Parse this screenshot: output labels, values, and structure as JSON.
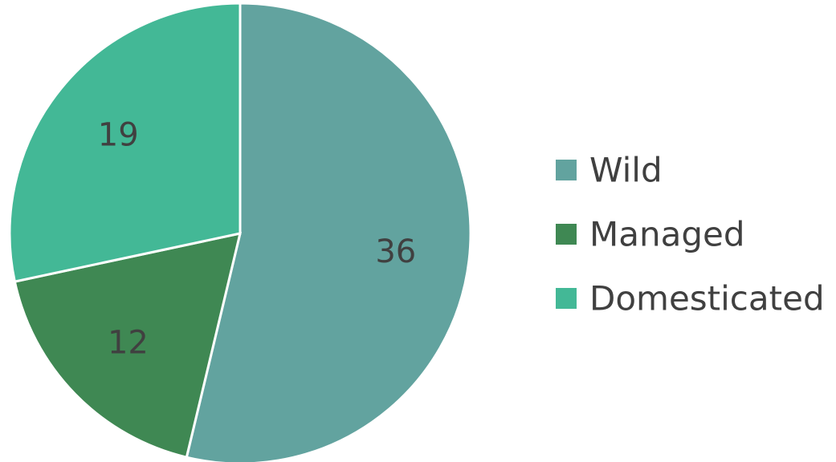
{
  "chart_data": {
    "type": "pie",
    "title": "",
    "categories": [
      "Wild",
      "Managed",
      "Domesticated"
    ],
    "values": [
      36,
      12,
      19
    ],
    "colors": [
      "#62a39f",
      "#3f8853",
      "#43b896"
    ],
    "data_labels": [
      "36",
      "12",
      "19"
    ],
    "start_angle_deg": 0,
    "direction": "clockwise",
    "legend": {
      "position": "right",
      "entries": [
        "Wild",
        "Managed",
        "Domesticated"
      ]
    }
  }
}
